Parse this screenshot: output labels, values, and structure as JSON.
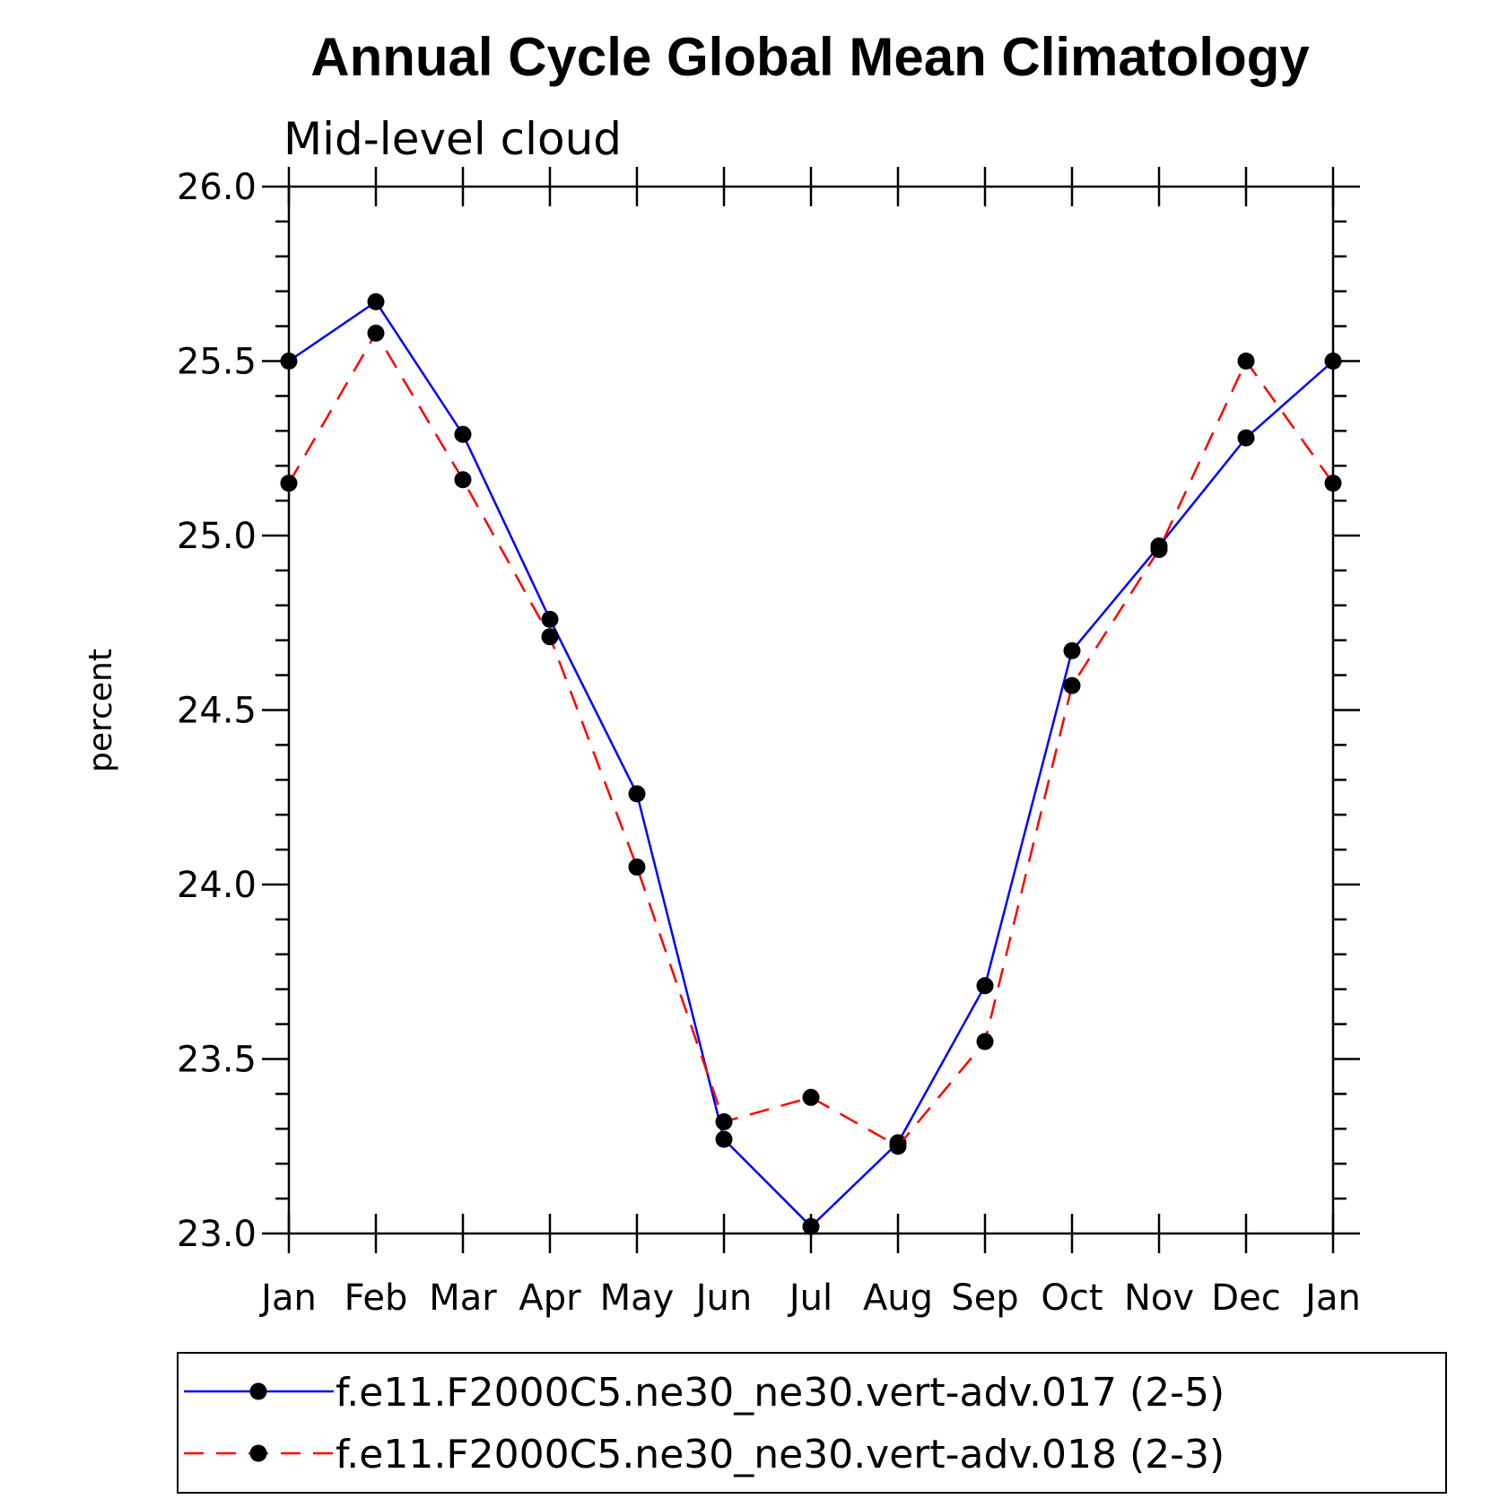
{
  "chart_data": {
    "type": "line",
    "title": "Annual Cycle Global Mean Climatology",
    "subtitle": "Mid-level cloud",
    "xlabel": "",
    "ylabel": "percent",
    "ylim": [
      23.0,
      26.0
    ],
    "yticks": [
      "23.0",
      "23.5",
      "24.0",
      "24.5",
      "25.0",
      "25.5",
      "26.0"
    ],
    "categories": [
      "Jan",
      "Feb",
      "Mar",
      "Apr",
      "May",
      "Jun",
      "Jul",
      "Aug",
      "Sep",
      "Oct",
      "Nov",
      "Dec",
      "Jan"
    ],
    "grid": false,
    "legend_position": "bottom",
    "series": [
      {
        "name": "f.e11.F2000C5.ne30_ne30.vert-adv.017 (2-5)",
        "color": "#0000ff",
        "dash": "solid",
        "values": [
          25.5,
          25.67,
          25.29,
          24.76,
          24.26,
          23.27,
          23.02,
          23.26,
          23.71,
          24.67,
          24.97,
          25.28,
          25.5
        ]
      },
      {
        "name": "f.e11.F2000C5.ne30_ne30.vert-adv.018 (2-3)",
        "color": "#ff0000",
        "dash": "dashed",
        "values": [
          25.15,
          25.58,
          25.16,
          24.71,
          24.05,
          23.32,
          23.39,
          23.25,
          23.55,
          24.57,
          24.96,
          25.5,
          25.15
        ]
      }
    ]
  }
}
